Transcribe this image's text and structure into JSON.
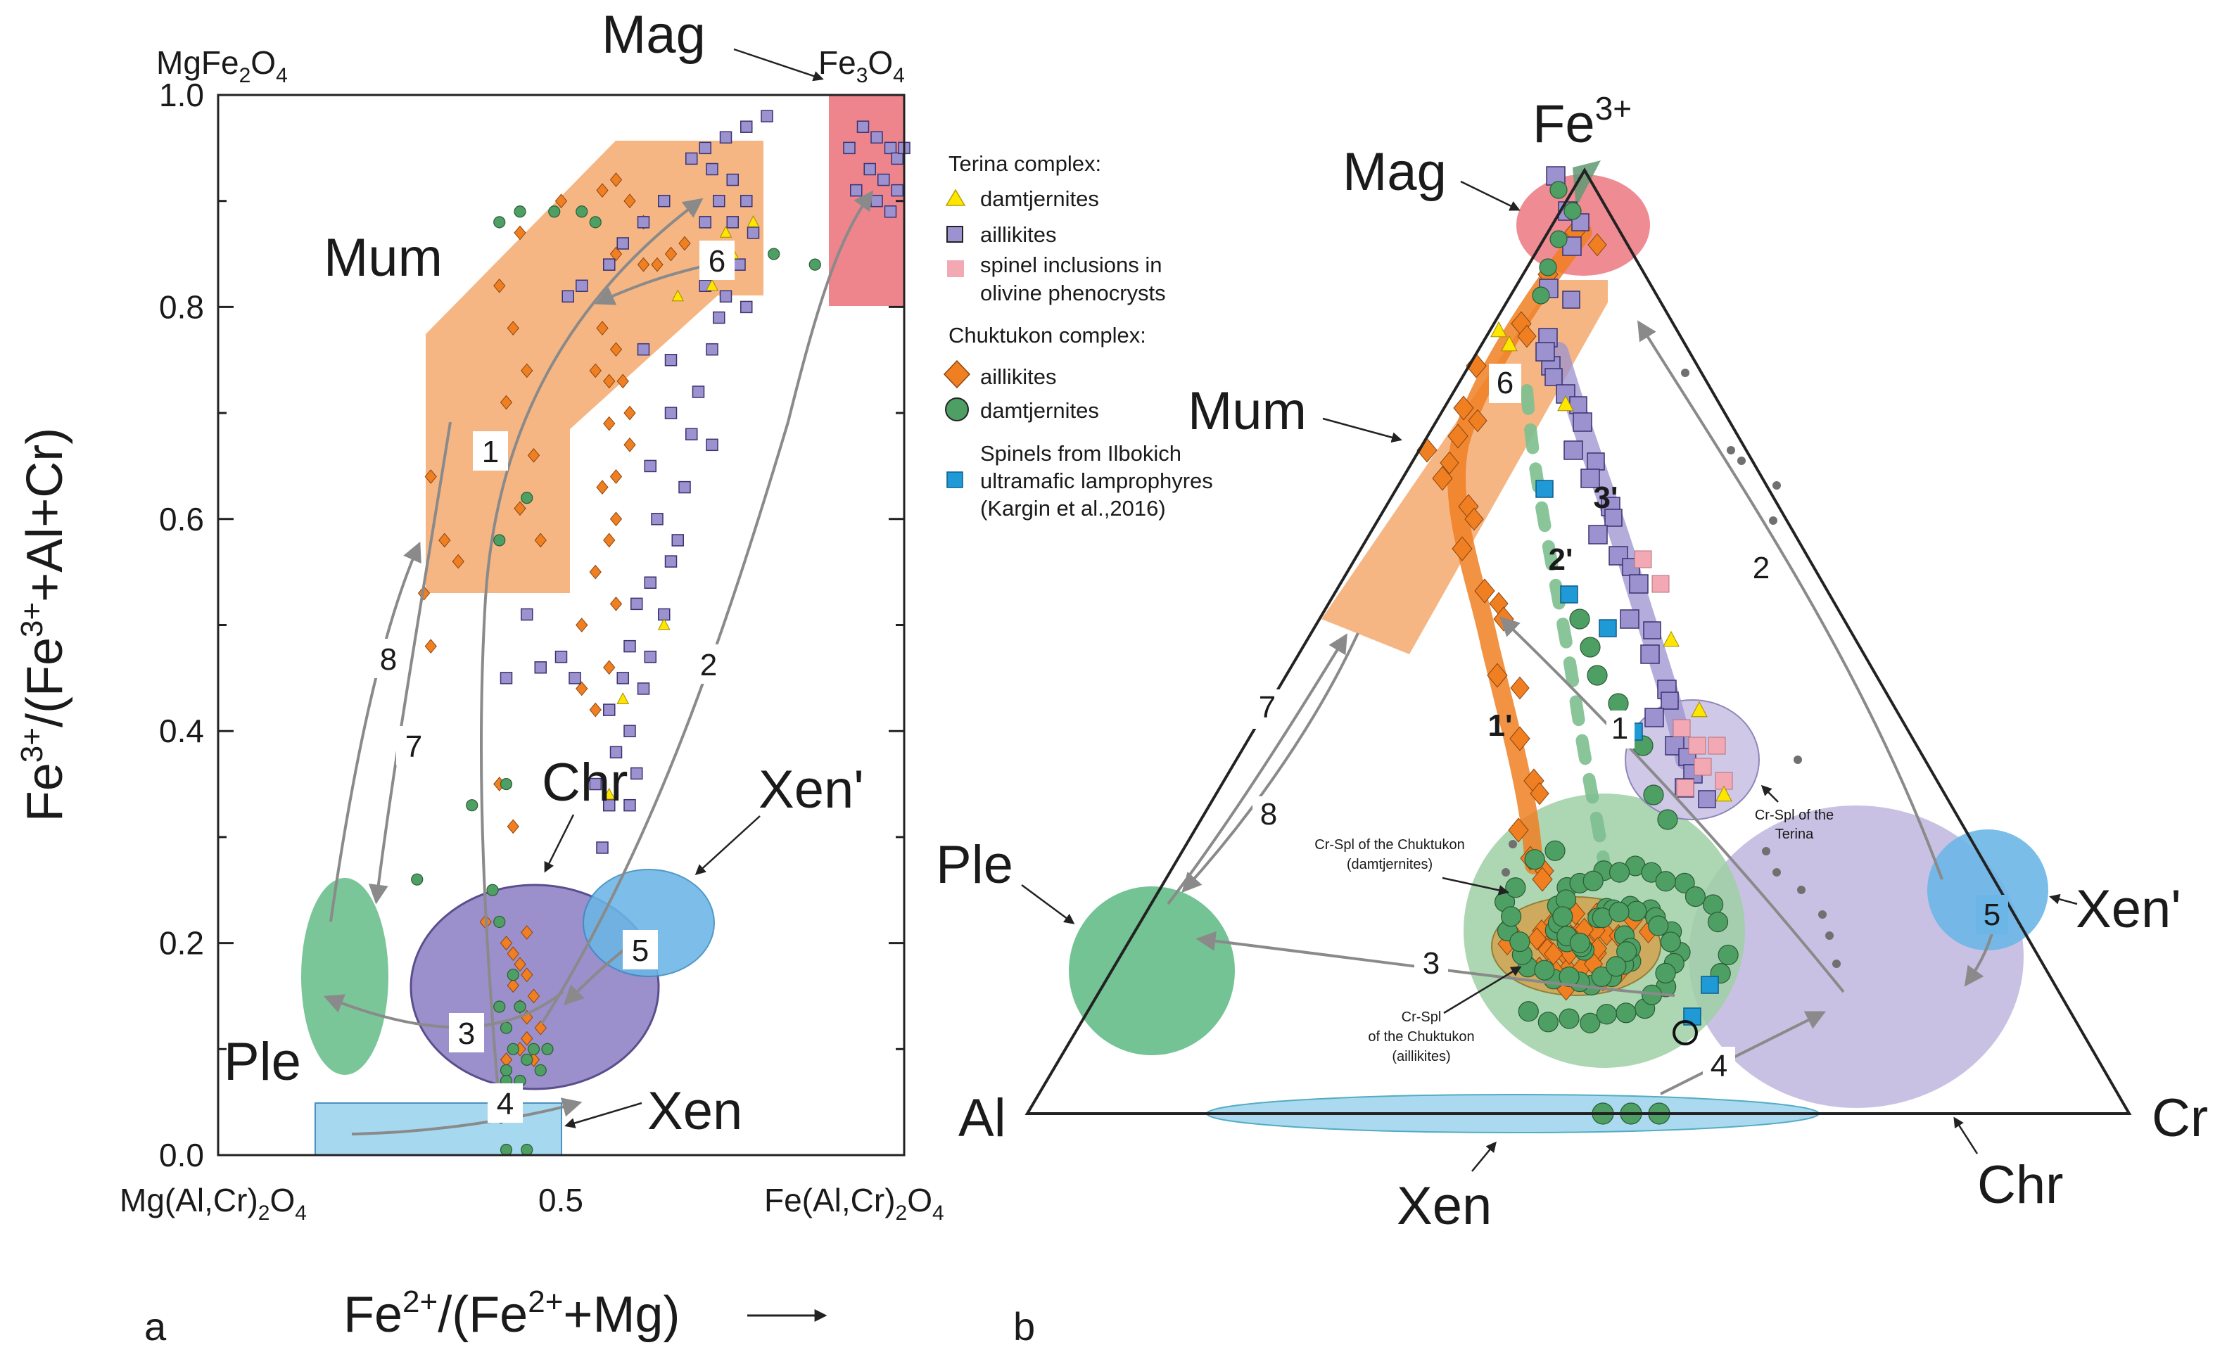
{
  "figure": {
    "panel_a_label": "a",
    "panel_b_label": "b"
  },
  "chart_data": [
    {
      "type": "scatter",
      "panel": "a",
      "xlabel": "Fe2+/(Fe2++Mg)",
      "ylabel": "Fe3+/(Fe3++Al+Cr)",
      "xlim": [
        0,
        1
      ],
      "ylim": [
        0,
        1
      ],
      "x_ticks": [
        {
          "v": 0,
          "label": "Mg(Al,Cr)2O4"
        },
        {
          "v": 0.5,
          "label": "0.5"
        },
        {
          "v": 1,
          "label": "Fe(Al,Cr)2O4"
        }
      ],
      "y_ticks": [
        {
          "v": 0.0,
          "label": "0.0"
        },
        {
          "v": 0.2,
          "label": "0.2"
        },
        {
          "v": 0.4,
          "label": "0.4"
        },
        {
          "v": 0.6,
          "label": "0.6"
        },
        {
          "v": 0.8,
          "label": "0.8"
        },
        {
          "v": 1.0,
          "label": "1.0"
        }
      ],
      "corner_labels": {
        "top_left": "MgFe2O4",
        "top_right": "Fe3O4"
      },
      "fields": [
        {
          "name": "Mag",
          "color": "#ee858d"
        },
        {
          "name": "Mum",
          "color": "#f6b27d"
        },
        {
          "name": "Chr",
          "color": "#9b8fcc"
        },
        {
          "name": "Xen'",
          "color": "#6bb6e6"
        },
        {
          "name": "Ple",
          "color": "#6cc08e"
        },
        {
          "name": "Xen",
          "color": "#a6d8f0"
        }
      ],
      "trend_numbers": [
        "1",
        "2",
        "3",
        "4",
        "5",
        "6",
        "7",
        "8"
      ],
      "series": [
        {
          "name": "Chuktukon aillikites",
          "marker": "diamond",
          "color": "#f07f22",
          "points": [
            [
              0.31,
              0.64
            ],
            [
              0.33,
              0.58
            ],
            [
              0.35,
              0.56
            ],
            [
              0.3,
              0.53
            ],
            [
              0.31,
              0.48
            ],
            [
              0.41,
              0.82
            ],
            [
              0.44,
              0.87
            ],
            [
              0.5,
              0.9
            ],
            [
              0.56,
              0.91
            ],
            [
              0.58,
              0.92
            ],
            [
              0.6,
              0.9
            ],
            [
              0.62,
              0.88
            ],
            [
              0.62,
              0.84
            ],
            [
              0.64,
              0.84
            ],
            [
              0.66,
              0.85
            ],
            [
              0.68,
              0.86
            ],
            [
              0.58,
              0.85
            ],
            [
              0.56,
              0.78
            ],
            [
              0.58,
              0.76
            ],
            [
              0.55,
              0.74
            ],
            [
              0.57,
              0.73
            ],
            [
              0.59,
              0.73
            ],
            [
              0.6,
              0.7
            ],
            [
              0.57,
              0.69
            ],
            [
              0.6,
              0.67
            ],
            [
              0.58,
              0.64
            ],
            [
              0.56,
              0.63
            ],
            [
              0.58,
              0.6
            ],
            [
              0.57,
              0.58
            ],
            [
              0.55,
              0.55
            ],
            [
              0.58,
              0.52
            ],
            [
              0.53,
              0.5
            ],
            [
              0.57,
              0.46
            ],
            [
              0.53,
              0.44
            ],
            [
              0.55,
              0.42
            ],
            [
              0.43,
              0.78
            ],
            [
              0.45,
              0.74
            ],
            [
              0.42,
              0.71
            ],
            [
              0.46,
              0.66
            ],
            [
              0.44,
              0.61
            ],
            [
              0.47,
              0.58
            ],
            [
              0.41,
              0.35
            ],
            [
              0.43,
              0.31
            ],
            [
              0.39,
              0.22
            ],
            [
              0.42,
              0.2
            ],
            [
              0.43,
              0.19
            ],
            [
              0.44,
              0.18
            ],
            [
              0.45,
              0.17
            ],
            [
              0.43,
              0.16
            ],
            [
              0.46,
              0.15
            ],
            [
              0.44,
              0.14
            ],
            [
              0.45,
              0.13
            ],
            [
              0.47,
              0.12
            ],
            [
              0.45,
              0.11
            ],
            [
              0.44,
              0.1
            ],
            [
              0.42,
              0.09
            ],
            [
              0.46,
              0.09
            ],
            [
              0.45,
              0.21
            ]
          ]
        },
        {
          "name": "Chuktukon damtjernites",
          "marker": "circle",
          "color": "#4e9f63",
          "points": [
            [
              0.41,
              0.88
            ],
            [
              0.44,
              0.89
            ],
            [
              0.53,
              0.89
            ],
            [
              0.55,
              0.88
            ],
            [
              0.49,
              0.89
            ],
            [
              0.87,
              0.84
            ],
            [
              0.81,
              0.85
            ],
            [
              0.45,
              0.62
            ],
            [
              0.41,
              0.58
            ],
            [
              0.42,
              0.35
            ],
            [
              0.37,
              0.33
            ],
            [
              0.29,
              0.26
            ],
            [
              0.4,
              0.25
            ],
            [
              0.41,
              0.22
            ],
            [
              0.43,
              0.17
            ],
            [
              0.44,
              0.14
            ],
            [
              0.42,
              0.12
            ],
            [
              0.43,
              0.1
            ],
            [
              0.45,
              0.09
            ],
            [
              0.42,
              0.08
            ],
            [
              0.44,
              0.07
            ],
            [
              0.47,
              0.08
            ],
            [
              0.46,
              0.1
            ],
            [
              0.42,
              0.005
            ],
            [
              0.45,
              0.005
            ],
            [
              0.42,
              0.07
            ],
            [
              0.41,
              0.14
            ],
            [
              0.48,
              0.1
            ]
          ]
        },
        {
          "name": "Terina aillikites",
          "marker": "square",
          "color": "#9b92cf",
          "points": [
            [
              0.71,
              0.95
            ],
            [
              0.74,
              0.96
            ],
            [
              0.77,
              0.97
            ],
            [
              0.8,
              0.98
            ],
            [
              0.69,
              0.94
            ],
            [
              0.72,
              0.93
            ],
            [
              0.75,
              0.92
            ],
            [
              0.73,
              0.9
            ],
            [
              0.77,
              0.9
            ],
            [
              0.71,
              0.88
            ],
            [
              0.75,
              0.88
            ],
            [
              0.78,
              0.87
            ],
            [
              0.73,
              0.85
            ],
            [
              0.76,
              0.84
            ],
            [
              0.71,
              0.82
            ],
            [
              0.74,
              0.81
            ],
            [
              0.77,
              0.8
            ],
            [
              0.73,
              0.79
            ],
            [
              0.65,
              0.9
            ],
            [
              0.62,
              0.88
            ],
            [
              0.59,
              0.86
            ],
            [
              0.57,
              0.84
            ],
            [
              0.53,
              0.82
            ],
            [
              0.51,
              0.81
            ],
            [
              0.62,
              0.76
            ],
            [
              0.66,
              0.75
            ],
            [
              0.72,
              0.76
            ],
            [
              0.7,
              0.72
            ],
            [
              0.66,
              0.7
            ],
            [
              0.69,
              0.68
            ],
            [
              0.72,
              0.67
            ],
            [
              0.63,
              0.65
            ],
            [
              0.68,
              0.63
            ],
            [
              0.64,
              0.6
            ],
            [
              0.67,
              0.58
            ],
            [
              0.66,
              0.56
            ],
            [
              0.63,
              0.54
            ],
            [
              0.61,
              0.52
            ],
            [
              0.65,
              0.51
            ],
            [
              0.6,
              0.48
            ],
            [
              0.63,
              0.47
            ],
            [
              0.59,
              0.45
            ],
            [
              0.62,
              0.44
            ],
            [
              0.57,
              0.42
            ],
            [
              0.6,
              0.4
            ],
            [
              0.58,
              0.38
            ],
            [
              0.61,
              0.36
            ],
            [
              0.55,
              0.35
            ],
            [
              0.57,
              0.33
            ],
            [
              0.6,
              0.33
            ],
            [
              0.5,
              0.47
            ],
            [
              0.47,
              0.46
            ],
            [
              0.52,
              0.45
            ],
            [
              0.42,
              0.45
            ],
            [
              0.56,
              0.29
            ],
            [
              0.45,
              0.51
            ]
          ]
        },
        {
          "name": "Terina magnetite cluster",
          "marker": "square",
          "color": "#9b92cf",
          "points": [
            [
              0.94,
              0.97
            ],
            [
              0.96,
              0.96
            ],
            [
              0.98,
              0.95
            ],
            [
              0.99,
              0.94
            ],
            [
              0.95,
              0.93
            ],
            [
              0.97,
              0.92
            ],
            [
              0.99,
              0.91
            ],
            [
              0.93,
              0.91
            ],
            [
              0.96,
              0.9
            ],
            [
              0.98,
              0.89
            ],
            [
              1.0,
              0.95
            ],
            [
              0.92,
              0.95
            ]
          ]
        },
        {
          "name": "Terina damtjernites",
          "marker": "triangle",
          "color": "#ffe600",
          "points": [
            [
              0.78,
              0.88
            ],
            [
              0.74,
              0.87
            ],
            [
              0.75,
              0.85
            ],
            [
              0.72,
              0.82
            ],
            [
              0.67,
              0.81
            ],
            [
              0.65,
              0.5
            ],
            [
              0.59,
              0.43
            ],
            [
              0.57,
              0.34
            ]
          ]
        }
      ]
    },
    {
      "type": "ternary",
      "panel": "b",
      "apices": {
        "top": "Fe3+",
        "left": "Al",
        "right": "Cr"
      },
      "fields": [
        {
          "name": "Mag",
          "color": "#ee858d"
        },
        {
          "name": "Mum",
          "color": "#f6b27d"
        },
        {
          "name": "Ple",
          "color": "#6cc08e"
        },
        {
          "name": "Xen'",
          "color": "#6bb6e6"
        },
        {
          "name": "Xen",
          "color": "#a6d8f0"
        },
        {
          "name": "Chr",
          "color": "#9b8fcc"
        }
      ],
      "trend_numbers": [
        "1",
        "2",
        "3",
        "4",
        "5",
        "6",
        "7",
        "8",
        "1'",
        "2'",
        "3'"
      ],
      "annotations": {
        "terina_cr_spl": [
          "Cr-Spl of the",
          "Terina"
        ],
        "chuktukon_damt": [
          "Cr-Spl of the Chuktukon",
          "(damtjernites)"
        ],
        "chuktukon_aill": [
          "Cr-Spl",
          "of the Chuktukon",
          "(aillikites)"
        ]
      }
    }
  ],
  "legend": {
    "terina_title": "Terina complex:",
    "terina_items": [
      "damtjernites",
      "aillikites",
      "spinel inclusions in",
      "olivine phenocrysts"
    ],
    "chuktukon_title": "Chuktukon complex:",
    "chuktukon_items": [
      "aillikites",
      "damtjernites"
    ],
    "ilbokich_lines": [
      "Spinels from Ilbokich",
      "ultramafic lamprophyres",
      "(Kargin et al.,2016)"
    ]
  },
  "colors": {
    "orange": "#f07f22",
    "green": "#4e9f63",
    "purple": "#9b92cf",
    "yellow": "#ffe600",
    "pink": "#f3a9b4",
    "blue": "#1f9ad6",
    "arrow": "#8a8a8a"
  }
}
